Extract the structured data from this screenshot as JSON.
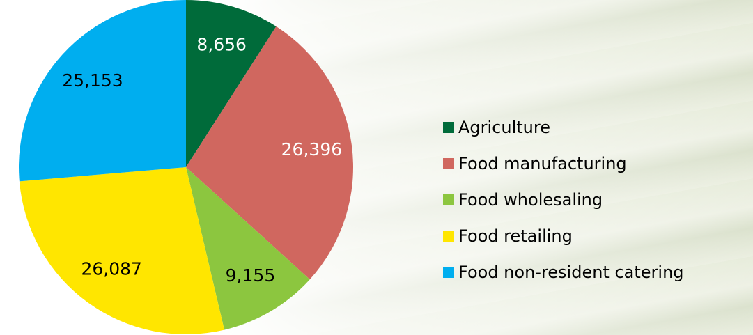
{
  "chart_data": {
    "type": "pie",
    "categories": [
      "Agriculture",
      "Food manufacturing",
      "Food wholesaling",
      "Food retailing",
      "Food non-resident catering"
    ],
    "values": [
      8656,
      26396,
      9155,
      26087,
      25153
    ],
    "value_labels": [
      "8,656",
      "26,396",
      "9,155",
      "26,087",
      "25,153"
    ],
    "colors": [
      "#006b3a",
      "#d0675f",
      "#8cc63f",
      "#ffe600",
      "#00aeef"
    ],
    "label_colors": [
      "#ffffff",
      "#ffffff",
      "#000000",
      "#000000",
      "#000000"
    ],
    "legend": "right"
  }
}
